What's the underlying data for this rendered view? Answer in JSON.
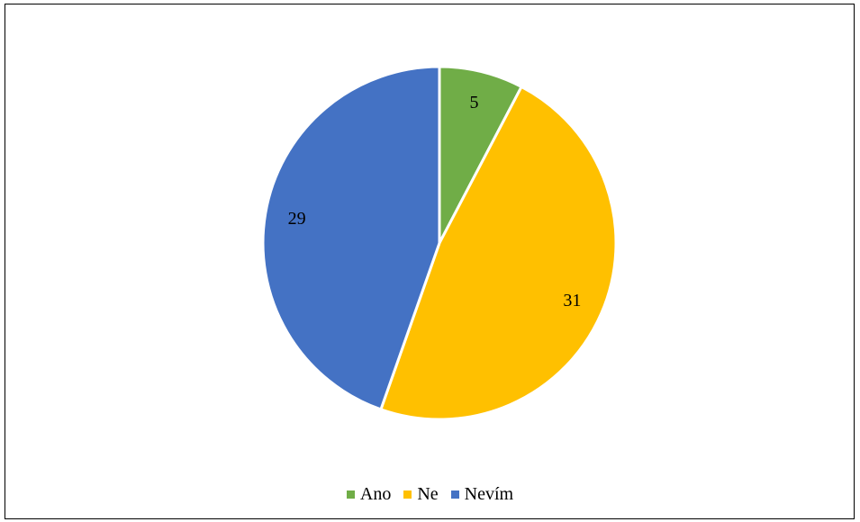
{
  "chart_data": {
    "type": "pie",
    "title": "",
    "categories": [
      "Ano",
      "Ne",
      "Nevím"
    ],
    "values": [
      5,
      31,
      29
    ],
    "colors": [
      "#70AD47",
      "#FFC000",
      "#4472C4"
    ],
    "start_angle_deg": 0,
    "direction": "clockwise",
    "data_labels": [
      "5",
      "31",
      "29"
    ],
    "legend_position": "bottom"
  }
}
